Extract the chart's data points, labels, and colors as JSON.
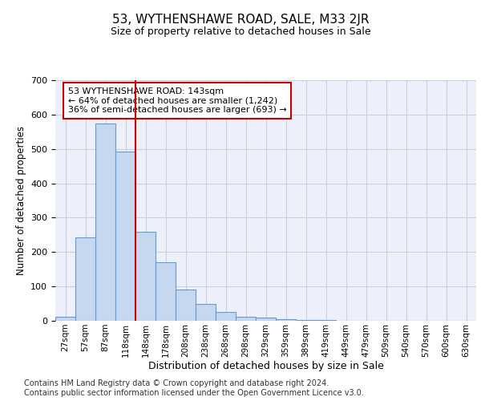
{
  "title": "53, WYTHENSHAWE ROAD, SALE, M33 2JR",
  "subtitle": "Size of property relative to detached houses in Sale",
  "xlabel": "Distribution of detached houses by size in Sale",
  "ylabel": "Number of detached properties",
  "bar_labels": [
    "27sqm",
    "57sqm",
    "87sqm",
    "118sqm",
    "148sqm",
    "178sqm",
    "208sqm",
    "238sqm",
    "268sqm",
    "298sqm",
    "329sqm",
    "359sqm",
    "389sqm",
    "419sqm",
    "449sqm",
    "479sqm",
    "509sqm",
    "540sqm",
    "570sqm",
    "600sqm",
    "630sqm"
  ],
  "bar_values": [
    12,
    243,
    575,
    493,
    260,
    170,
    90,
    48,
    25,
    12,
    10,
    5,
    3,
    2,
    1,
    1,
    0,
    0,
    0,
    0,
    0
  ],
  "bar_color": "#c5d8f0",
  "bar_edge_color": "#6699cc",
  "vline_color": "#cc0000",
  "annotation_text": "53 WYTHENSHAWE ROAD: 143sqm\n← 64% of detached houses are smaller (1,242)\n36% of semi-detached houses are larger (693) →",
  "annotation_box_color": "#ffffff",
  "annotation_box_edge": "#cc0000",
  "ylim": [
    0,
    700
  ],
  "yticks": [
    0,
    100,
    200,
    300,
    400,
    500,
    600,
    700
  ],
  "bg_color": "#edf0fb",
  "footer": "Contains HM Land Registry data © Crown copyright and database right 2024.\nContains public sector information licensed under the Open Government Licence v3.0.",
  "grid_color": "#c8d0e0"
}
